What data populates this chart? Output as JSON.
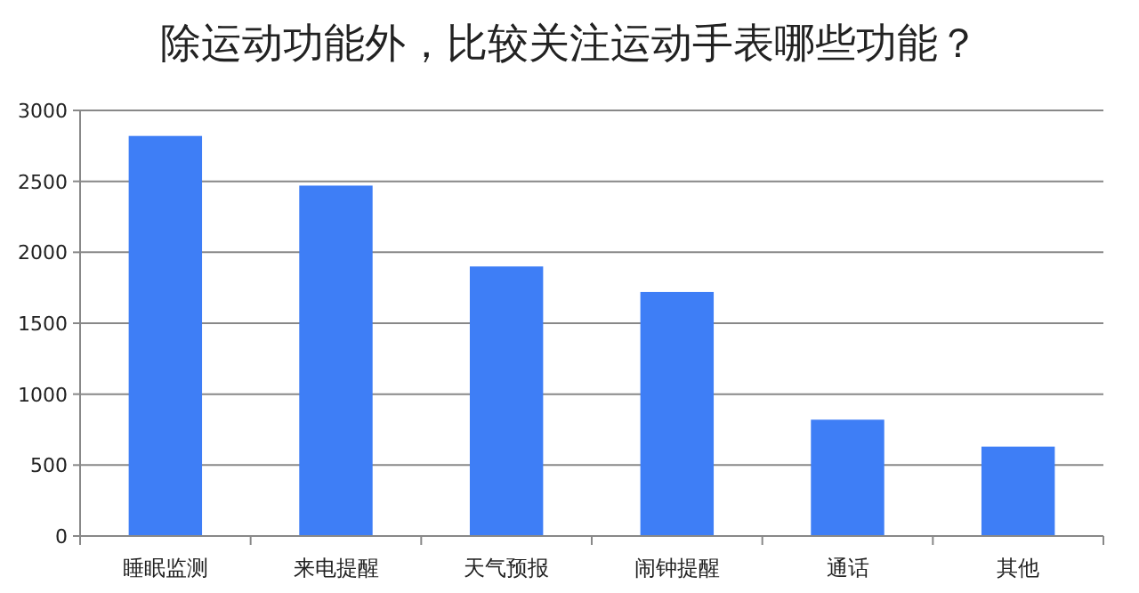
{
  "chart_data": {
    "type": "bar",
    "title": "除运动功能外，比较关注运动手表哪些功能？",
    "categories": [
      "睡眠监测",
      "来电提醒",
      "天气预报",
      "闹钟提醒",
      "通话",
      "其他"
    ],
    "values": [
      2820,
      2470,
      1900,
      1720,
      820,
      630
    ],
    "color": "#3e7ef6",
    "ylim": [
      0,
      3000
    ],
    "yticks": [
      0,
      500,
      1000,
      1500,
      2000,
      2500,
      3000
    ],
    "grid": "y"
  }
}
